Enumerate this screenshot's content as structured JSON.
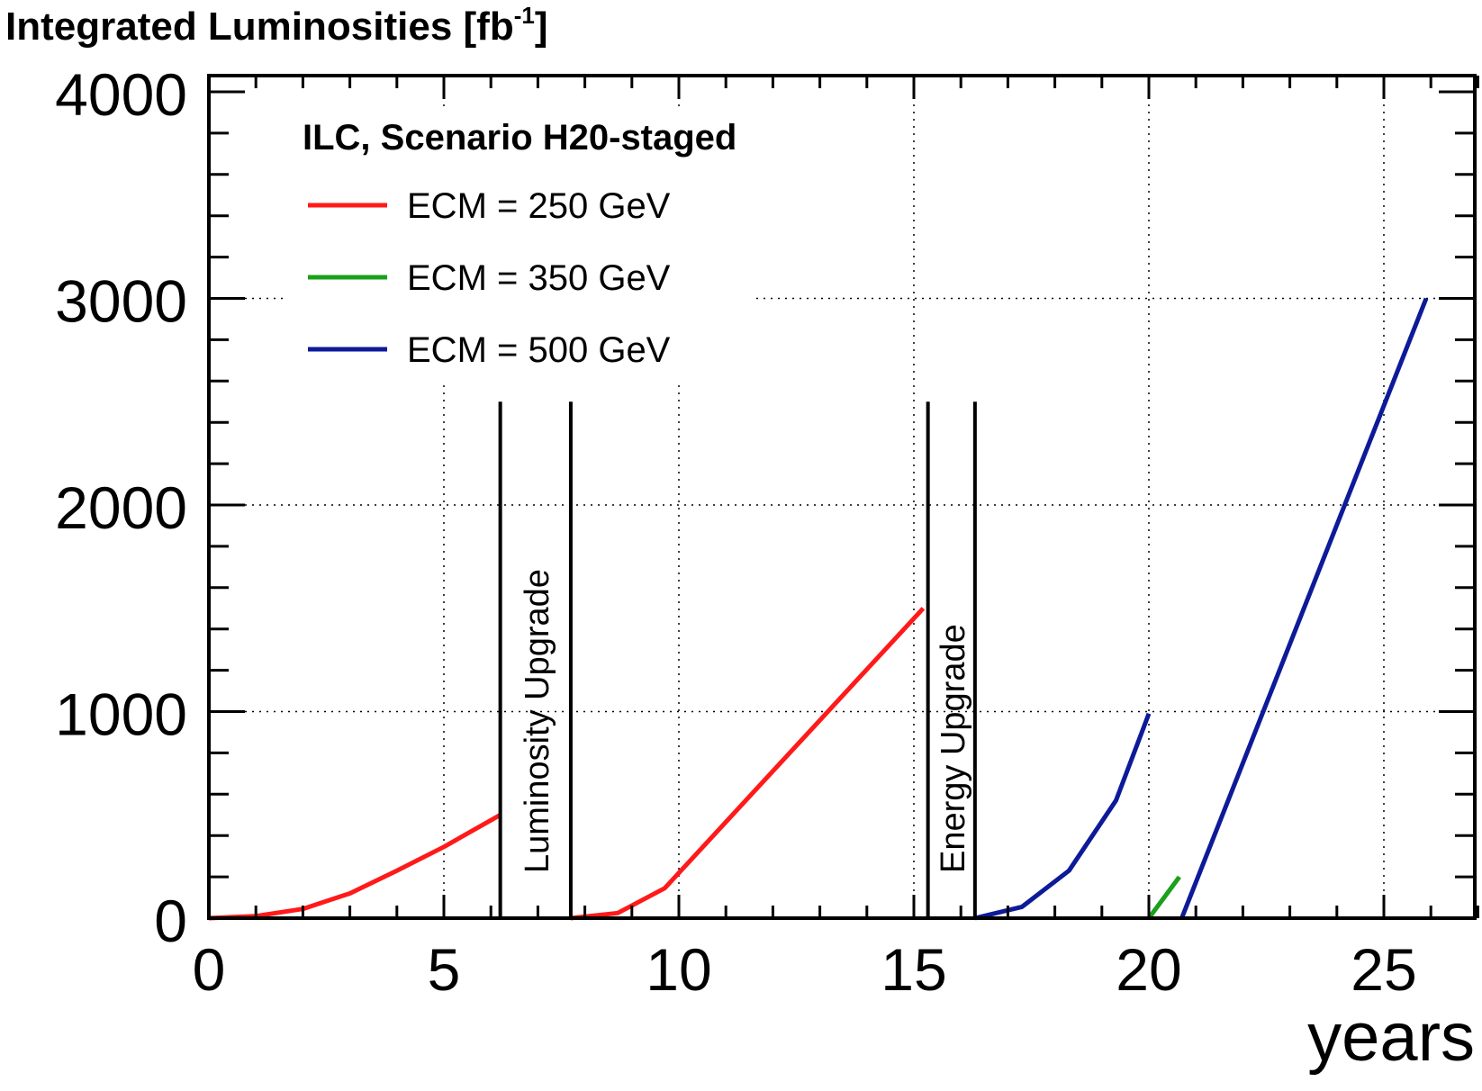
{
  "chart_data": {
    "type": "line",
    "title": "Integrated Luminosities  [fb",
    "title_sup": "-1",
    "title_close": "]",
    "xlabel": "years",
    "ylabel": "",
    "xlim": [
      0,
      27
    ],
    "ylim": [
      0,
      4000
    ],
    "grid": true,
    "x_ticks": [
      0,
      5,
      10,
      15,
      20,
      25
    ],
    "x_tick_labels": [
      "0",
      "5",
      "10",
      "15",
      "20",
      "25"
    ],
    "y_ticks": [
      0,
      1000,
      2000,
      3000,
      4000
    ],
    "y_tick_labels": [
      "0",
      "1000",
      "2000",
      "3000",
      "4000"
    ],
    "legend": {
      "title": "ILC, Scenario H20-staged",
      "placement": "top-left"
    },
    "series": [
      {
        "name": "ECM = 250 GeV",
        "color": "#ff1a1a",
        "segments": [
          [
            [
              0,
              0
            ],
            [
              1,
              10
            ],
            [
              2,
              45
            ],
            [
              3,
              120
            ],
            [
              4,
              230
            ],
            [
              5,
              345
            ],
            [
              6.2,
              500
            ]
          ],
          [
            [
              7.7,
              0
            ],
            [
              8.7,
              25
            ],
            [
              9.7,
              145
            ],
            [
              15.2,
              1500
            ]
          ]
        ]
      },
      {
        "name": "ECM = 350 GeV",
        "color": "#1aa01a",
        "segments": [
          [
            [
              20.0,
              0
            ],
            [
              20.65,
              200
            ]
          ]
        ]
      },
      {
        "name": "ECM = 500 GeV",
        "color": "#0d1a99",
        "segments": [
          [
            [
              16.3,
              0
            ],
            [
              17.3,
              55
            ],
            [
              18.3,
              230
            ],
            [
              19.3,
              570
            ],
            [
              20.0,
              990
            ]
          ],
          [
            [
              20.7,
              0
            ],
            [
              25.9,
              3000
            ]
          ]
        ]
      }
    ],
    "annotations": [
      {
        "text": "Luminosity Upgrade",
        "x_start": 6.2,
        "x_end": 7.7,
        "y_top": 2500
      },
      {
        "text": "Energy Upgrade",
        "x_start": 15.3,
        "x_end": 16.3,
        "y_top": 2500
      }
    ]
  }
}
